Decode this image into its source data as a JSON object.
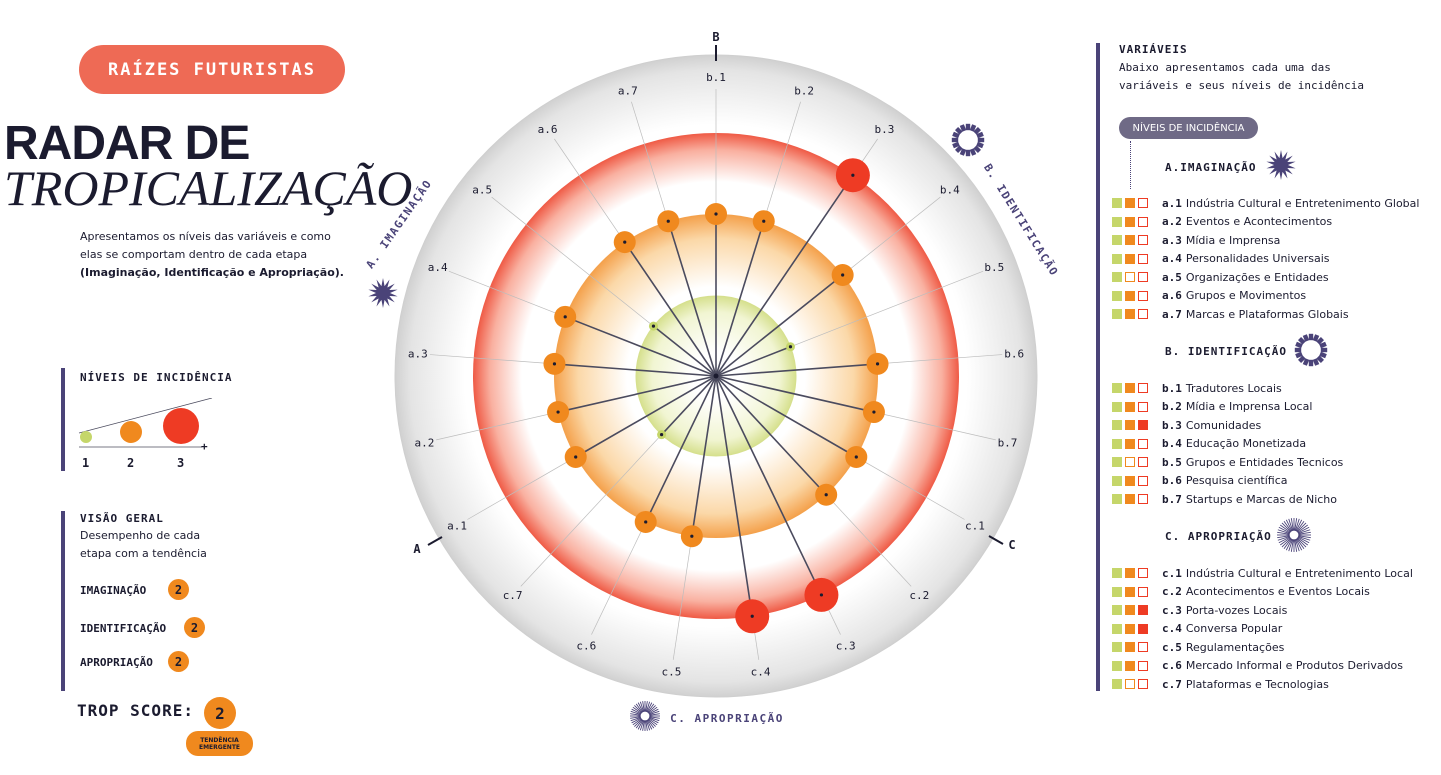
{
  "header": {
    "pill": "RAÍZES FUTURISTAS",
    "title_line1": "RADAR DE",
    "title_line2": "TROPICALIZAÇÃO",
    "intro_text": "Apresentamos os níveis das variáveis e como elas se comportam dentro de cada etapa",
    "intro_bold": "(Imaginação, Identificação e Apropriação)."
  },
  "legend_levels": {
    "title": "NÍVEIS DE INCIDÊNCIA",
    "labels": [
      "1",
      "2",
      "3"
    ],
    "plus": "+"
  },
  "overview": {
    "title": "VISÃO GERAL",
    "subtitle_line1": "Desempenho de cada",
    "subtitle_line2": "etapa com a tendência",
    "rows": [
      {
        "label": "IMAGINAÇÃO",
        "value": "2"
      },
      {
        "label": "IDENTIFICAÇÃO",
        "value": "2"
      },
      {
        "label": "APROPRIAÇÃO",
        "value": "2"
      }
    ],
    "trop_label": "TROP SCORE:",
    "trop_value": "2",
    "trop_tag_line1": "TENDÊNCIA",
    "trop_tag_line2": "EMERGENTE"
  },
  "variables_panel": {
    "title": "VARIÁVEIS",
    "desc_line1": "Abaixo apresentamos cada uma das",
    "desc_line2": "variáveis e seus níveis de incidência",
    "tag": "NÍVEIS DE INCIDÊNCIA",
    "sections": [
      {
        "title": "A.IMAGINAÇÃO",
        "icon": "star-burst-icon",
        "items": [
          {
            "code": "a.1",
            "label": "Indústria Cultural e Entretenimento Global",
            "level": 2
          },
          {
            "code": "a.2",
            "label": "Eventos e Acontecimentos",
            "level": 2
          },
          {
            "code": "a.3",
            "label": "Mídia e Imprensa",
            "level": 2
          },
          {
            "code": "a.4",
            "label": "Personalidades Universais",
            "level": 2
          },
          {
            "code": "a.5",
            "label": "Organizações e Entidades",
            "level": 1
          },
          {
            "code": "a.6",
            "label": "Grupos e Movimentos",
            "level": 2
          },
          {
            "code": "a.7",
            "label": "Marcas e Plataformas Globais",
            "level": 2
          }
        ]
      },
      {
        "title": "B. IDENTIFICAÇÃO",
        "icon": "dotted-ring-icon",
        "items": [
          {
            "code": "b.1",
            "label": "Tradutores Locais",
            "level": 2
          },
          {
            "code": "b.2",
            "label": "Mídia e Imprensa Local",
            "level": 2
          },
          {
            "code": "b.3",
            "label": "Comunidades",
            "level": 3
          },
          {
            "code": "b.4",
            "label": "Educação Monetizada",
            "level": 2
          },
          {
            "code": "b.5",
            "label": "Grupos e Entidades Tecnicos",
            "level": 1
          },
          {
            "code": "b.6",
            "label": "Pesquisa científica",
            "level": 2
          },
          {
            "code": "b.7",
            "label": "Startups e Marcas de Nicho",
            "level": 2
          }
        ]
      },
      {
        "title": "C. APROPRIAÇÃO",
        "icon": "sun-rays-icon",
        "items": [
          {
            "code": "c.1",
            "label": "Indústria Cultural e Entretenimento Local",
            "level": 2
          },
          {
            "code": "c.2",
            "label": "Acontecimentos e Eventos Locais",
            "level": 2
          },
          {
            "code": "c.3",
            "label": "Porta-vozes Locais",
            "level": 3
          },
          {
            "code": "c.4",
            "label": "Conversa Popular",
            "level": 3
          },
          {
            "code": "c.5",
            "label": "Regulamentações",
            "level": 2
          },
          {
            "code": "c.6",
            "label": "Mercado Informal e Produtos Derivados",
            "level": 2
          },
          {
            "code": "c.7",
            "label": "Plataformas e Tecnologias",
            "level": 1
          }
        ]
      }
    ]
  },
  "chart_data": {
    "type": "radar",
    "sector_labels": [
      "A",
      "B",
      "C"
    ],
    "sector_names": [
      "A. IMAGINAÇÃO",
      "B. IDENTIFICAÇÃO",
      "C. APROPRIAÇÃO"
    ],
    "levels_range": [
      1,
      3
    ],
    "points": [
      {
        "label": "a.1",
        "value": 2
      },
      {
        "label": "a.2",
        "value": 2
      },
      {
        "label": "a.3",
        "value": 2
      },
      {
        "label": "a.4",
        "value": 2
      },
      {
        "label": "a.5",
        "value": 1
      },
      {
        "label": "a.6",
        "value": 2
      },
      {
        "label": "a.7",
        "value": 2
      },
      {
        "label": "b.1",
        "value": 2
      },
      {
        "label": "b.2",
        "value": 2
      },
      {
        "label": "b.3",
        "value": 3
      },
      {
        "label": "b.4",
        "value": 2
      },
      {
        "label": "b.5",
        "value": 1
      },
      {
        "label": "b.6",
        "value": 2
      },
      {
        "label": "b.7",
        "value": 2
      },
      {
        "label": "c.1",
        "value": 2
      },
      {
        "label": "c.2",
        "value": 2
      },
      {
        "label": "c.3",
        "value": 3
      },
      {
        "label": "c.4",
        "value": 3
      },
      {
        "label": "c.5",
        "value": 2
      },
      {
        "label": "c.6",
        "value": 2
      },
      {
        "label": "c.7",
        "value": 1
      }
    ],
    "colors": {
      "level1": "#c5d66a",
      "level2": "#f0891e",
      "level3": "#ee3b24",
      "line": "#4b4b5e",
      "accent": "#4a4378"
    }
  }
}
